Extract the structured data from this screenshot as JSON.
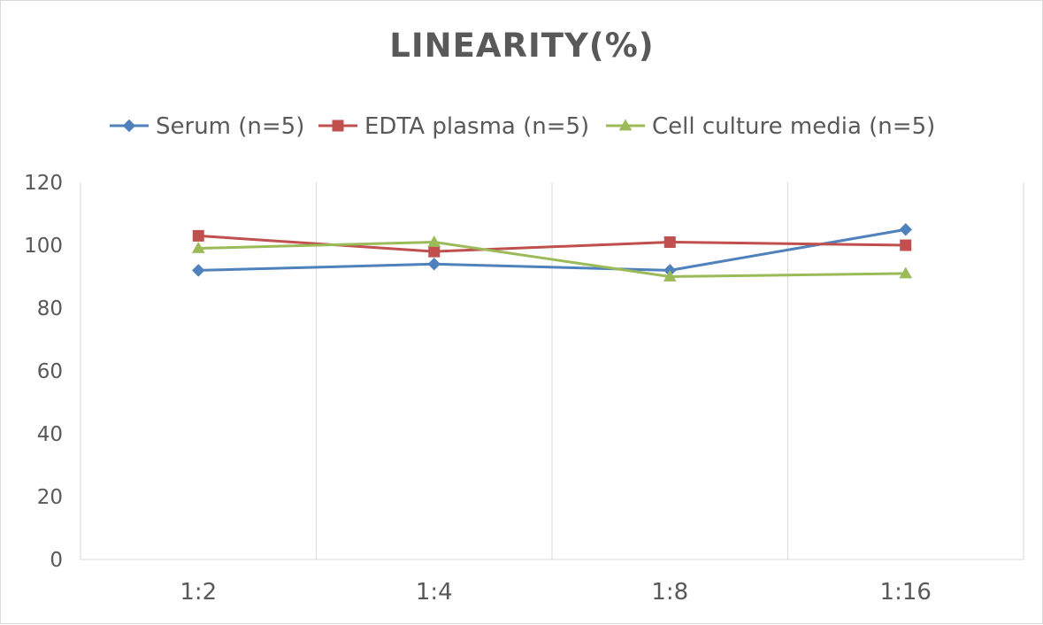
{
  "chart_data": {
    "type": "line",
    "title": "LINEARITY(%)",
    "xlabel": "",
    "ylabel": "",
    "categories": [
      "1:2",
      "1:4",
      "1:8",
      "1:16"
    ],
    "ylim": [
      0,
      120
    ],
    "yticks": [
      0,
      20,
      40,
      60,
      80,
      100,
      120
    ],
    "grid": "vertical",
    "legend_position": "top",
    "series": [
      {
        "name": "Serum (n=5)",
        "values": [
          92,
          94,
          92,
          105
        ],
        "color": "#4f81bd",
        "marker": "diamond"
      },
      {
        "name": "EDTA plasma (n=5)",
        "values": [
          103,
          98,
          101,
          100
        ],
        "color": "#c0504d",
        "marker": "square"
      },
      {
        "name": "Cell culture media (n=5)",
        "values": [
          99,
          101,
          90,
          91
        ],
        "color": "#9bbb59",
        "marker": "triangle"
      }
    ]
  }
}
